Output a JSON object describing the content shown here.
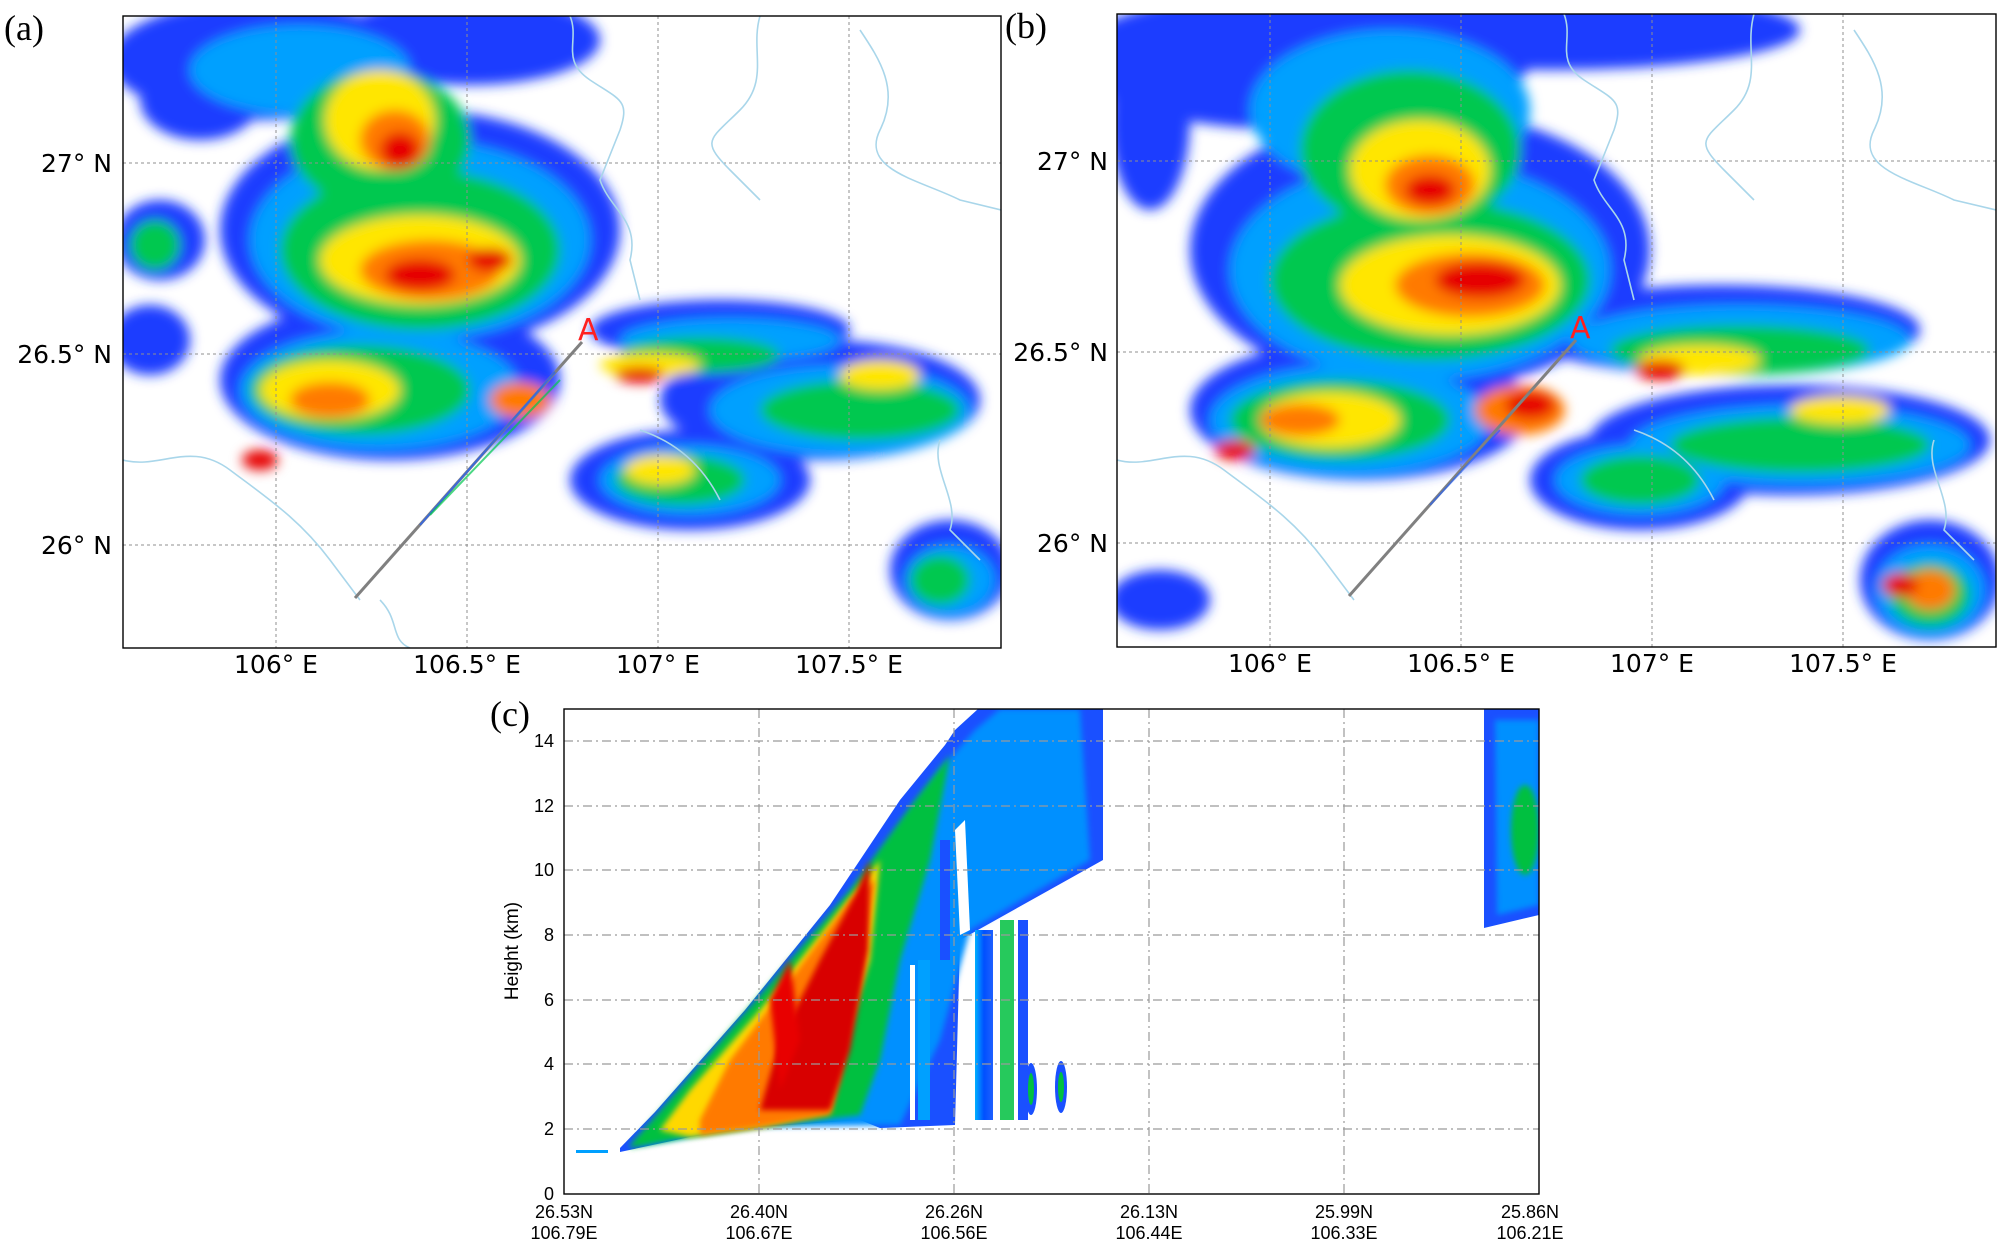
{
  "panels": {
    "a": {
      "label": "(a)",
      "x_ticks": [
        "106° E",
        "106.5° E",
        "107° E",
        "107.5° E"
      ],
      "y_ticks": [
        "27° N",
        "26.5° N",
        "26° N"
      ],
      "point_label": "A"
    },
    "b": {
      "label": "(b)",
      "x_ticks": [
        "106° E",
        "106.5° E",
        "107° E",
        "107.5° E"
      ],
      "y_ticks": [
        "27° N",
        "26.5° N",
        "26° N"
      ],
      "point_label": "A"
    },
    "c": {
      "label": "(c)",
      "ylabel": "Height (km)",
      "y_ticks": [
        "0",
        "2",
        "4",
        "6",
        "8",
        "10",
        "12",
        "14"
      ],
      "x_ticks": [
        {
          "lat": "26.53N",
          "lon": "106.79E"
        },
        {
          "lat": "26.40N",
          "lon": "106.67E"
        },
        {
          "lat": "26.26N",
          "lon": "106.56E"
        },
        {
          "lat": "26.13N",
          "lon": "106.44E"
        },
        {
          "lat": "25.99N",
          "lon": "106.33E"
        },
        {
          "lat": "25.86N",
          "lon": "106.21E"
        }
      ]
    }
  },
  "colors": {
    "weak": "#1e3cff",
    "light": "#00a0ff",
    "moderate": "#00c850",
    "strong": "#ffe600",
    "heavy": "#ff7a00",
    "intense": "#e60000",
    "border": "#a9d6ea",
    "line": "#808080",
    "point_label": "#ff2020"
  }
}
